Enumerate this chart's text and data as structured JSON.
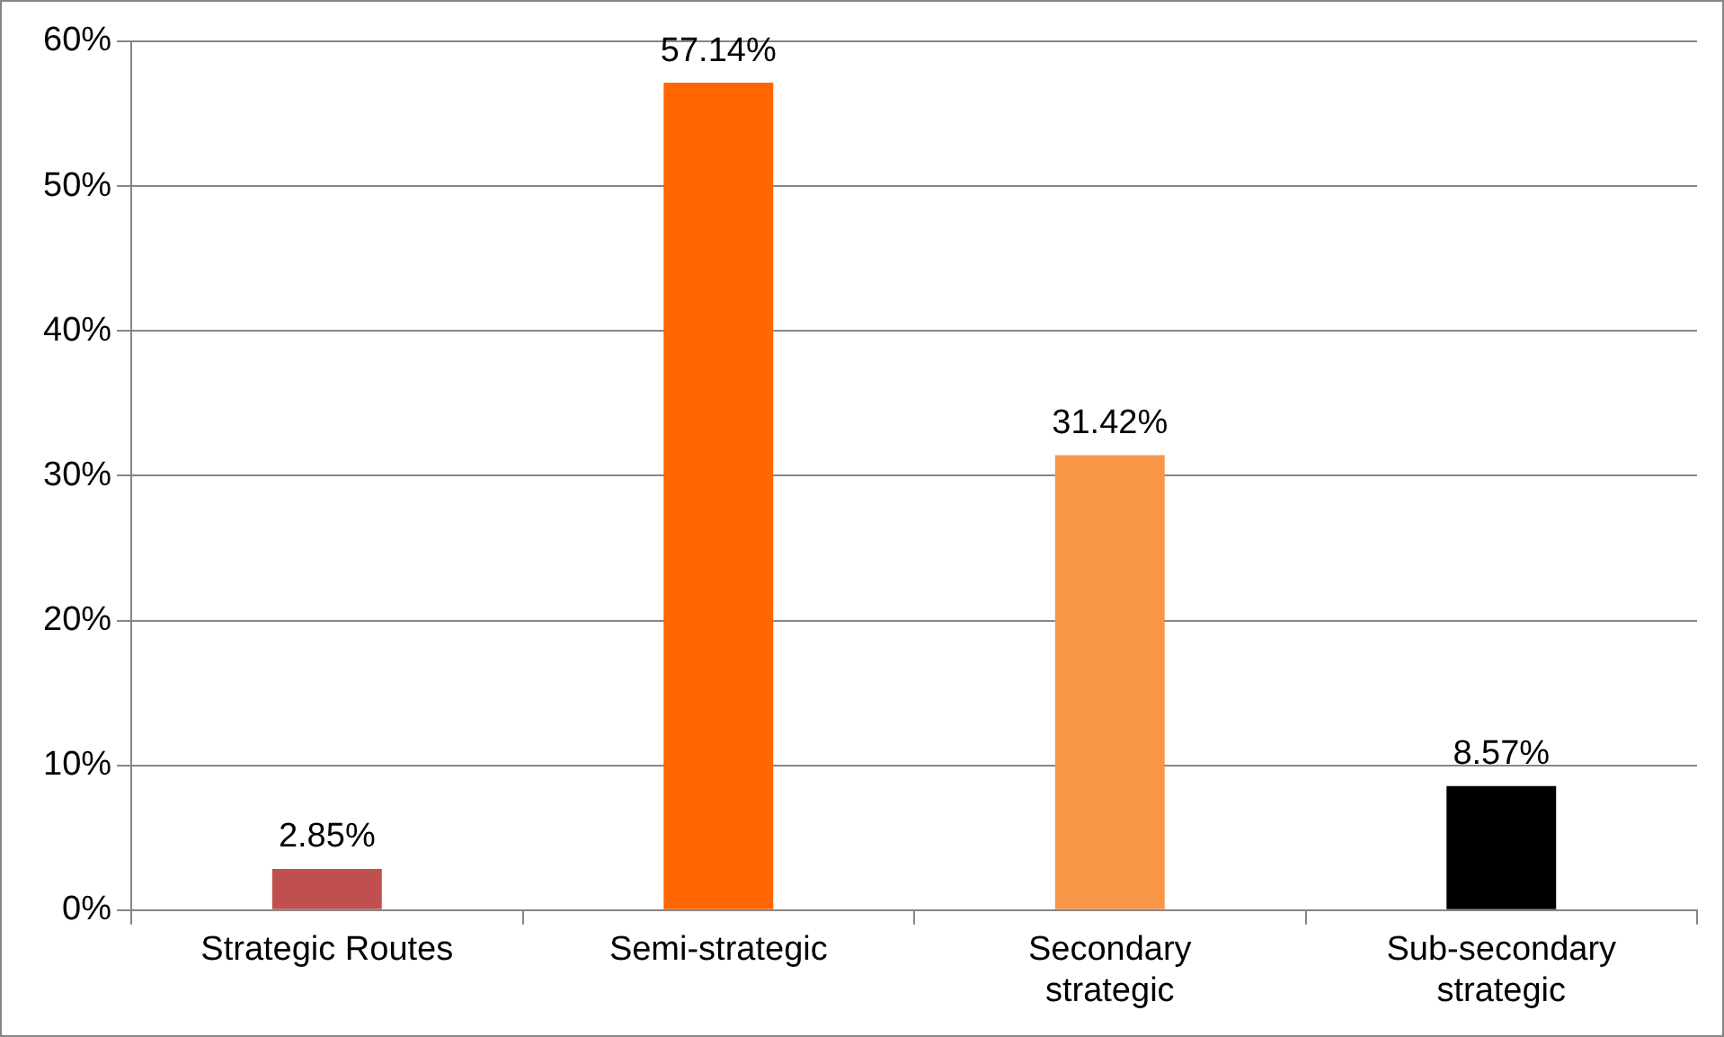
{
  "chart_data": {
    "type": "bar",
    "categories": [
      "Strategic Routes",
      "Semi-strategic",
      "Secondary strategic",
      "Sub-secondary strategic"
    ],
    "values": [
      2.85,
      57.14,
      31.42,
      8.57
    ],
    "colors": [
      "#c0504d",
      "#ff6600",
      "#f79646",
      "#000000"
    ],
    "value_labels": [
      "2.85%",
      "57.14%",
      "31.42%",
      "8.57%"
    ],
    "ylim": [
      0,
      60
    ],
    "yticks": [
      {
        "value": 0,
        "label": "0%"
      },
      {
        "value": 10,
        "label": "10%"
      },
      {
        "value": 20,
        "label": "20%"
      },
      {
        "value": 30,
        "label": "30%"
      },
      {
        "value": 40,
        "label": "40%"
      },
      {
        "value": 50,
        "label": "50%"
      },
      {
        "value": 60,
        "label": "60%"
      }
    ],
    "grid": "y",
    "legend": false
  }
}
